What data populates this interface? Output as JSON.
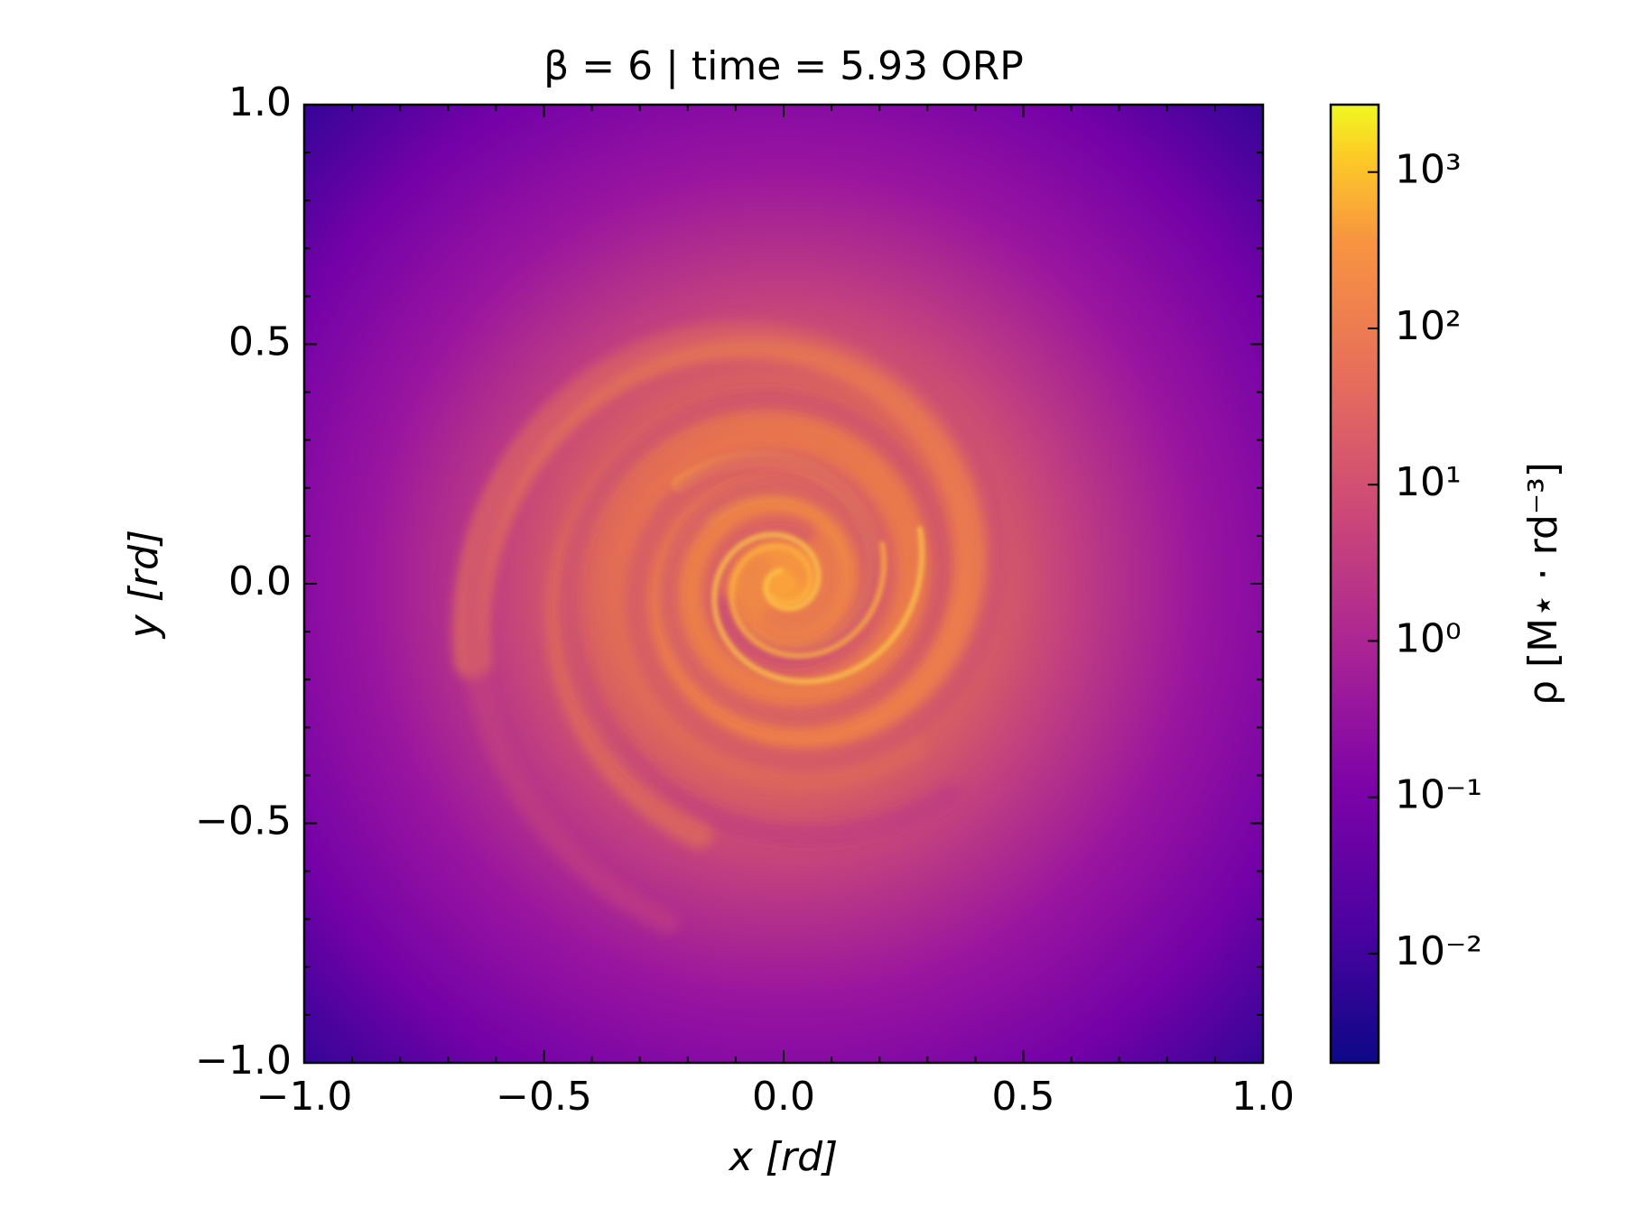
{
  "chart_data": {
    "type": "heatmap",
    "title": "β = 6 | time = 5.93 ORP",
    "xlabel": "x [rd]",
    "ylabel": "y [rd]",
    "colorbar_label": "ρ [M⋆ · rd⁻³]",
    "colormap": "plasma",
    "xlim": [
      -1,
      1
    ],
    "ylim": [
      -1,
      1
    ],
    "xticks": [
      {
        "value": -1,
        "label": "−1.0"
      },
      {
        "value": -0.5,
        "label": "−0.5"
      },
      {
        "value": 0,
        "label": "0.0"
      },
      0.5,
      {
        "value": 1,
        "label": "1.0"
      }
    ],
    "yticks": [
      {
        "value": -1,
        "label": "−1.0"
      },
      {
        "value": -0.5,
        "label": "−0.5"
      },
      {
        "value": 0,
        "label": "0.0"
      },
      0.5,
      {
        "value": 1,
        "label": "1.0"
      }
    ],
    "xminorticks": [
      -0.9,
      -0.8,
      -0.7,
      -0.6,
      -0.4,
      -0.3,
      -0.2,
      -0.1,
      0.1,
      0.2,
      0.3,
      0.4,
      0.6,
      0.7,
      0.8,
      0.9
    ],
    "yminorticks": [
      -0.9,
      -0.8,
      -0.7,
      -0.6,
      -0.4,
      -0.3,
      -0.2,
      -0.1,
      0.1,
      0.2,
      0.3,
      0.4,
      0.6,
      0.7,
      0.8,
      0.9
    ],
    "clim": [
      0.002,
      2700
    ],
    "clog": true,
    "cticks": [
      {
        "value": 0.01,
        "label": "10⁻²"
      },
      {
        "value": 0.1,
        "label": "10⁻¹"
      },
      {
        "value": 1,
        "label": "10⁰"
      },
      {
        "value": 10,
        "label": "10¹"
      },
      {
        "value": 100,
        "label": "10²"
      },
      {
        "value": 1000,
        "label": "10³"
      }
    ]
  }
}
